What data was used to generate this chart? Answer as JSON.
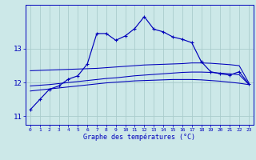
{
  "xlabel": "Graphe des températures (°C)",
  "background_color": "#cce8e8",
  "grid_color": "#aacccc",
  "line_color": "#0000bb",
  "hours": [
    0,
    1,
    2,
    3,
    4,
    5,
    6,
    7,
    8,
    9,
    10,
    11,
    12,
    13,
    14,
    15,
    16,
    17,
    18,
    19,
    20,
    21,
    22,
    23
  ],
  "temp_main": [
    11.2,
    11.5,
    11.8,
    11.9,
    12.1,
    12.2,
    12.55,
    13.45,
    13.45,
    13.25,
    13.38,
    13.6,
    13.95,
    13.58,
    13.5,
    13.35,
    13.28,
    13.18,
    12.62,
    12.32,
    12.26,
    12.22,
    12.32,
    11.96
  ],
  "temp_avg_high": [
    12.35,
    12.36,
    12.37,
    12.38,
    12.39,
    12.4,
    12.41,
    12.42,
    12.44,
    12.46,
    12.48,
    12.5,
    12.52,
    12.53,
    12.54,
    12.55,
    12.56,
    12.58,
    12.58,
    12.57,
    12.55,
    12.53,
    12.5,
    12.0
  ],
  "temp_avg_mid": [
    11.9,
    11.92,
    11.94,
    11.97,
    12.0,
    12.03,
    12.06,
    12.09,
    12.12,
    12.14,
    12.17,
    12.2,
    12.22,
    12.24,
    12.26,
    12.28,
    12.3,
    12.31,
    12.31,
    12.3,
    12.28,
    12.26,
    12.23,
    11.95
  ],
  "temp_avg_low": [
    11.75,
    11.78,
    11.81,
    11.84,
    11.87,
    11.9,
    11.93,
    11.96,
    11.99,
    12.01,
    12.03,
    12.05,
    12.06,
    12.07,
    12.08,
    12.09,
    12.09,
    12.09,
    12.08,
    12.06,
    12.04,
    12.01,
    11.98,
    11.94
  ],
  "ylim": [
    10.75,
    14.3
  ],
  "yticks": [
    11,
    12,
    13
  ],
  "xlim": [
    -0.5,
    23.5
  ]
}
